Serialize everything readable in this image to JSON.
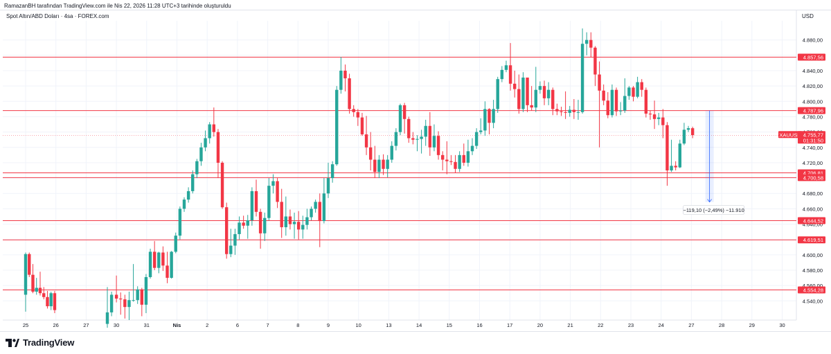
{
  "header": {
    "caption": "RamazanBH tarafından TradingView.com ile Nis 22, 2026 11:28 UTC+3 tarihinde oluşturuldu",
    "symbol_title": "Spot Altın/ABD Doları · 4sa · FOREX.com",
    "currency": "USD"
  },
  "brand": {
    "name": "TradingView",
    "icon": "tradingview-logo-icon"
  },
  "colors": {
    "up": "#26a69a",
    "down": "#f23645",
    "level": "#f23645",
    "grid": "#f0f3fa",
    "measure": "#2962ff"
  },
  "chart_data": {
    "type": "candlestick",
    "title": "Spot Altın/ABD Doları · 4sa · FOREX.com",
    "ylim": [
      4515,
      4905
    ],
    "y_ticks": [
      "4.540,00",
      "4.560,00",
      "4.580,00",
      "4.600,00",
      "4.620,00",
      "4.640,00",
      "4.660,00",
      "4.680,00",
      "4.700,00",
      "4.720,00",
      "4.740,00",
      "4.760,00",
      "4.780,00",
      "4.800,00",
      "4.820,00",
      "4.840,00",
      "4.860,00",
      "4.880,00"
    ],
    "y_tick_values": [
      4540,
      4560,
      4580,
      4600,
      4620,
      4640,
      4660,
      4680,
      4700,
      4720,
      4740,
      4760,
      4780,
      4800,
      4820,
      4840,
      4860,
      4880
    ],
    "x_labels": [
      "25",
      "26",
      "27",
      "30",
      "31",
      "Nis",
      "2",
      "6",
      "7",
      "8",
      "9",
      "10",
      "13",
      "14",
      "15",
      "16",
      "17",
      "20",
      "21",
      "22",
      "23",
      "24",
      "27",
      "28",
      "29",
      "30"
    ],
    "x_label_days": [
      0,
      1,
      2,
      3,
      4,
      5,
      6,
      7,
      8,
      9,
      10,
      11,
      12,
      13,
      14,
      15,
      16,
      17,
      18,
      19,
      20,
      21,
      22,
      23,
      24,
      25
    ],
    "candles": [
      [
        0.0,
        4548,
        4601,
        4526,
        4603
      ],
      [
        0.12,
        4601,
        4574,
        4571,
        4603
      ],
      [
        0.24,
        4574,
        4552,
        4550,
        4588
      ],
      [
        0.36,
        4552,
        4557,
        4548,
        4570
      ],
      [
        0.48,
        4557,
        4550,
        4547,
        4578
      ],
      [
        0.6,
        4550,
        4545,
        4542,
        4558
      ],
      [
        0.72,
        4545,
        4533,
        4530,
        4553
      ],
      [
        0.84,
        4533,
        4550,
        4528,
        4552
      ],
      [
        0.96,
        4550,
        4528,
        4524,
        4553
      ],
      [
        2.7,
        4510,
        4525,
        4505,
        4558
      ],
      [
        2.84,
        4525,
        4548,
        4520,
        4552
      ],
      [
        3.0,
        4548,
        4543,
        4538,
        4573
      ],
      [
        3.14,
        4543,
        4542,
        4522,
        4551
      ],
      [
        3.28,
        4542,
        4532,
        4517,
        4548
      ],
      [
        3.42,
        4532,
        4541,
        4515,
        4552
      ],
      [
        3.56,
        4541,
        4541,
        4539,
        4588
      ],
      [
        3.7,
        4541,
        4555,
        4536,
        4559
      ],
      [
        3.84,
        4555,
        4535,
        4520,
        4557
      ],
      [
        3.98,
        4535,
        4571,
        4524,
        4575
      ],
      [
        4.12,
        4571,
        4604,
        4569,
        4608
      ],
      [
        4.26,
        4604,
        4583,
        4580,
        4618
      ],
      [
        4.4,
        4583,
        4603,
        4576,
        4604
      ],
      [
        4.54,
        4603,
        4586,
        4579,
        4611
      ],
      [
        4.68,
        4586,
        4570,
        4563,
        4604
      ],
      [
        4.82,
        4570,
        4604,
        4569,
        4605
      ],
      [
        4.96,
        4604,
        4625,
        4602,
        4629
      ],
      [
        5.1,
        4625,
        4660,
        4620,
        4663
      ],
      [
        5.24,
        4660,
        4672,
        4656,
        4675
      ],
      [
        5.38,
        4672,
        4683,
        4668,
        4688
      ],
      [
        5.52,
        4683,
        4705,
        4680,
        4710
      ],
      [
        5.66,
        4705,
        4722,
        4700,
        4725
      ],
      [
        5.8,
        4722,
        4740,
        4716,
        4746
      ],
      [
        5.94,
        4740,
        4752,
        4735,
        4762
      ],
      [
        6.08,
        4752,
        4770,
        4745,
        4773
      ],
      [
        6.22,
        4770,
        4760,
        4754,
        4792
      ],
      [
        6.36,
        4760,
        4720,
        4700,
        4764
      ],
      [
        6.5,
        4720,
        4662,
        4660,
        4722
      ],
      [
        6.64,
        4662,
        4601,
        4595,
        4668
      ],
      [
        6.78,
        4601,
        4612,
        4597,
        4634
      ],
      [
        6.92,
        4612,
        4627,
        4600,
        4634
      ],
      [
        7.06,
        4627,
        4642,
        4620,
        4650
      ],
      [
        7.2,
        4642,
        4638,
        4634,
        4651
      ],
      [
        7.34,
        4638,
        4645,
        4621,
        4652
      ],
      [
        7.48,
        4645,
        4683,
        4638,
        4688
      ],
      [
        7.62,
        4683,
        4656,
        4650,
        4698
      ],
      [
        7.76,
        4656,
        4628,
        4608,
        4660
      ],
      [
        7.9,
        4628,
        4648,
        4618,
        4655
      ],
      [
        8.04,
        4648,
        4690,
        4645,
        4700
      ],
      [
        8.18,
        4690,
        4696,
        4680,
        4705
      ],
      [
        8.32,
        4696,
        4669,
        4661,
        4700
      ],
      [
        8.46,
        4669,
        4636,
        4622,
        4686
      ],
      [
        8.6,
        4636,
        4650,
        4625,
        4676
      ],
      [
        8.74,
        4650,
        4640,
        4633,
        4659
      ],
      [
        8.88,
        4640,
        4643,
        4621,
        4655
      ],
      [
        9.02,
        4643,
        4633,
        4620,
        4657
      ],
      [
        9.16,
        4633,
        4639,
        4621,
        4651
      ],
      [
        9.3,
        4639,
        4649,
        4633,
        4660
      ],
      [
        9.44,
        4649,
        4660,
        4645,
        4663
      ],
      [
        9.58,
        4660,
        4669,
        4655,
        4672
      ],
      [
        9.72,
        4669,
        4644,
        4610,
        4680
      ],
      [
        9.86,
        4644,
        4680,
        4641,
        4700
      ],
      [
        10.0,
        4680,
        4700,
        4674,
        4720
      ],
      [
        10.14,
        4700,
        4718,
        4694,
        4722
      ],
      [
        10.28,
        4718,
        4815,
        4716,
        4820
      ],
      [
        10.42,
        4815,
        4840,
        4810,
        4858
      ],
      [
        10.56,
        4840,
        4830,
        4813,
        4848
      ],
      [
        10.7,
        4830,
        4790,
        4784,
        4836
      ],
      [
        10.84,
        4790,
        4786,
        4780,
        4795
      ],
      [
        10.98,
        4786,
        4779,
        4768,
        4790
      ],
      [
        11.12,
        4779,
        4757,
        4755,
        4785
      ],
      [
        11.26,
        4757,
        4740,
        4730,
        4781
      ],
      [
        11.4,
        4740,
        4724,
        4710,
        4760
      ],
      [
        11.54,
        4724,
        4708,
        4700,
        4742
      ],
      [
        11.68,
        4708,
        4724,
        4700,
        4730
      ],
      [
        11.82,
        4724,
        4712,
        4704,
        4731
      ],
      [
        11.96,
        4712,
        4724,
        4701,
        4730
      ],
      [
        12.1,
        4724,
        4742,
        4720,
        4748
      ],
      [
        12.24,
        4742,
        4760,
        4736,
        4765
      ],
      [
        12.38,
        4760,
        4795,
        4756,
        4797
      ],
      [
        12.52,
        4795,
        4777,
        4758,
        4798
      ],
      [
        12.66,
        4777,
        4752,
        4746,
        4780
      ],
      [
        12.8,
        4752,
        4750,
        4744,
        4760
      ],
      [
        12.94,
        4750,
        4751,
        4735,
        4756
      ],
      [
        13.08,
        4751,
        4754,
        4732,
        4763
      ],
      [
        13.22,
        4754,
        4768,
        4742,
        4776
      ],
      [
        13.36,
        4768,
        4740,
        4729,
        4786
      ],
      [
        13.5,
        4740,
        4755,
        4735,
        4770
      ],
      [
        13.64,
        4755,
        4730,
        4724,
        4761
      ],
      [
        13.78,
        4730,
        4724,
        4710,
        4735
      ],
      [
        13.92,
        4724,
        4722,
        4705,
        4748
      ],
      [
        14.06,
        4722,
        4721,
        4717,
        4730
      ],
      [
        14.2,
        4721,
        4712,
        4707,
        4730
      ],
      [
        14.34,
        4712,
        4730,
        4708,
        4735
      ],
      [
        14.48,
        4730,
        4720,
        4716,
        4745
      ],
      [
        14.62,
        4720,
        4735,
        4715,
        4750
      ],
      [
        14.76,
        4735,
        4742,
        4730,
        4752
      ],
      [
        14.9,
        4742,
        4760,
        4738,
        4765
      ],
      [
        15.04,
        4760,
        4762,
        4757,
        4778
      ],
      [
        15.18,
        4762,
        4790,
        4755,
        4800
      ],
      [
        15.32,
        4790,
        4772,
        4757,
        4791
      ],
      [
        15.46,
        4772,
        4790,
        4765,
        4802
      ],
      [
        15.6,
        4790,
        4829,
        4785,
        4832
      ],
      [
        15.74,
        4829,
        4841,
        4825,
        4846
      ],
      [
        15.88,
        4841,
        4847,
        4838,
        4853
      ],
      [
        16.02,
        4847,
        4823,
        4814,
        4876
      ],
      [
        16.16,
        4823,
        4816,
        4805,
        4840
      ],
      [
        16.3,
        4816,
        4790,
        4784,
        4835
      ],
      [
        16.44,
        4790,
        4831,
        4786,
        4838
      ],
      [
        16.58,
        4831,
        4795,
        4786,
        4830
      ],
      [
        16.72,
        4795,
        4792,
        4788,
        4820
      ],
      [
        16.86,
        4792,
        4815,
        4786,
        4845
      ],
      [
        17.0,
        4815,
        4820,
        4810,
        4826
      ],
      [
        17.14,
        4820,
        4804,
        4795,
        4827
      ],
      [
        17.28,
        4804,
        4815,
        4795,
        4825
      ],
      [
        17.42,
        4815,
        4790,
        4782,
        4818
      ],
      [
        17.56,
        4790,
        4787,
        4782,
        4797
      ],
      [
        17.7,
        4787,
        4786,
        4781,
        4793
      ],
      [
        17.84,
        4786,
        4785,
        4777,
        4813
      ],
      [
        17.98,
        4785,
        4789,
        4780,
        4794
      ],
      [
        18.12,
        4789,
        4786,
        4777,
        4803
      ],
      [
        18.26,
        4786,
        4786,
        4776,
        4802
      ],
      [
        18.4,
        4786,
        4875,
        4784,
        4895
      ],
      [
        18.54,
        4875,
        4880,
        4860,
        4890
      ],
      [
        18.68,
        4880,
        4870,
        4858,
        4890
      ],
      [
        18.82,
        4870,
        4835,
        4820,
        4872
      ],
      [
        18.96,
        4835,
        4814,
        4740,
        4852
      ],
      [
        19.1,
        4814,
        4801,
        4795,
        4822
      ],
      [
        19.24,
        4801,
        4782,
        4778,
        4812
      ],
      [
        19.38,
        4782,
        4815,
        4779,
        4822
      ],
      [
        19.52,
        4815,
        4787,
        4781,
        4818
      ],
      [
        19.66,
        4787,
        4788,
        4782,
        4799
      ],
      [
        19.8,
        4788,
        4807,
        4785,
        4830
      ],
      [
        19.94,
        4807,
        4818,
        4802,
        4820
      ],
      [
        20.08,
        4818,
        4806,
        4800,
        4820
      ],
      [
        20.22,
        4806,
        4825,
        4804,
        4832
      ],
      [
        20.36,
        4825,
        4815,
        4806,
        4829
      ],
      [
        20.5,
        4815,
        4784,
        4779,
        4818
      ],
      [
        20.64,
        4784,
        4783,
        4776,
        4788
      ],
      [
        20.78,
        4783,
        4777,
        4764,
        4801
      ],
      [
        20.92,
        4777,
        4779,
        4769,
        4785
      ],
      [
        21.06,
        4779,
        4769,
        4752,
        4790
      ],
      [
        21.2,
        4769,
        4710,
        4690,
        4773
      ],
      [
        21.34,
        4710,
        4716,
        4708,
        4750
      ],
      [
        21.48,
        4716,
        4714,
        4710,
        4722
      ],
      [
        21.62,
        4714,
        4745,
        4713,
        4750
      ],
      [
        21.76,
        4745,
        4763,
        4743,
        4772
      ],
      [
        21.9,
        4763,
        4765,
        4760,
        4768
      ],
      [
        22.04,
        4765,
        4756,
        4752,
        4767
      ]
    ],
    "horizontal_levels": [
      {
        "value": 4857.56,
        "label": "4.857,56"
      },
      {
        "value": 4787.96,
        "label": "4.787,96"
      },
      {
        "value": 4706.81,
        "label": "4.706,81"
      },
      {
        "value": 4700.58,
        "label": "4.700,58"
      },
      {
        "value": 4644.52,
        "label": "4.644,52"
      },
      {
        "value": 4619.51,
        "label": "4.619,51"
      },
      {
        "value": 4554.28,
        "label": "4.554,28"
      }
    ],
    "current_price": {
      "symbol": "XAUUSD",
      "price": "4.755,77",
      "countdown": "01:31:50",
      "value": 4755.77
    },
    "measure": {
      "from_value": 4787.96,
      "to_value": 4668.86,
      "from_day": 22.6,
      "to_day": 22.6,
      "label": "−119,10 (−2,49%) −11.910"
    }
  }
}
